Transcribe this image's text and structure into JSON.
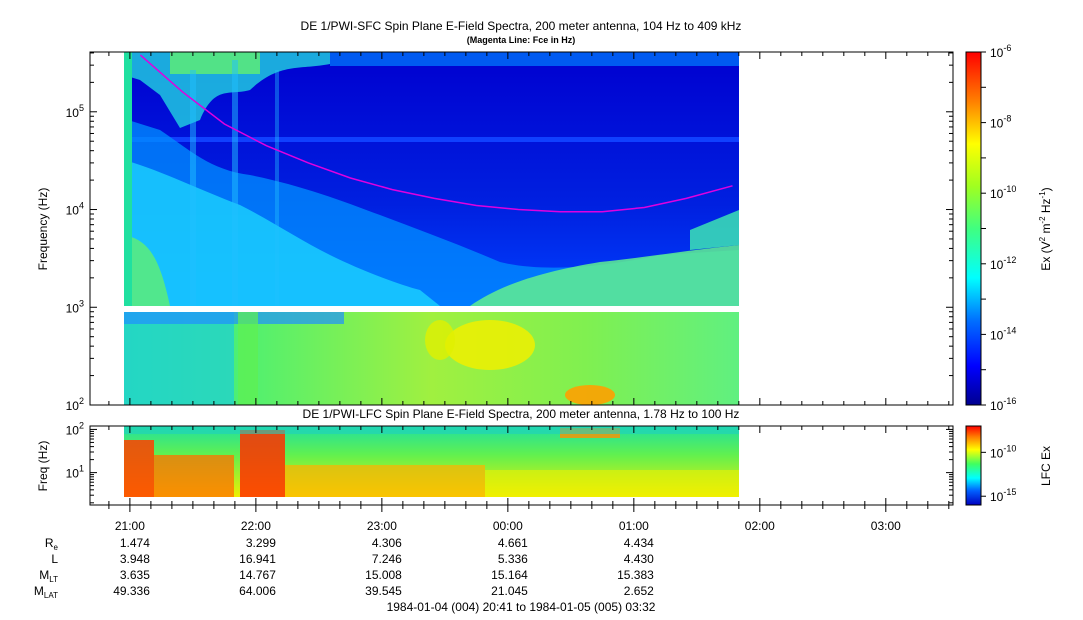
{
  "chart_data": [
    {
      "type": "heatmap",
      "title": "DE 1/PWI-SFC  Spin Plane E-Field Spectra, 200 meter antenna, 104 Hz to 409 kHz",
      "subtitle": "(Magenta Line: Fce in Hz)",
      "ylabel": "Frequency (Hz)",
      "yscale": "log",
      "ylim": [
        100,
        409000
      ],
      "yticks": [
        {
          "value": 100,
          "label": "10^2"
        },
        {
          "value": 1000,
          "label": "10^3"
        },
        {
          "value": 10000,
          "label": "10^4"
        },
        {
          "value": 100000,
          "label": "10^5"
        }
      ],
      "data_coverage_x": [
        "1984-01-04T20:56",
        "1984-01-05T01:49"
      ],
      "colorbar": {
        "label": "Ex (V^2 m^-2 Hz^-1)",
        "scale": "log",
        "range": [
          1e-16,
          1e-06
        ],
        "ticks": [
          {
            "value": 1e-06,
            "label": "10^-6"
          },
          {
            "value": 1e-08,
            "label": "10^-8"
          },
          {
            "value": 1e-10,
            "label": "10^-10"
          },
          {
            "value": 1e-12,
            "label": "10^-12"
          },
          {
            "value": 1e-14,
            "label": "10^-14"
          },
          {
            "value": 1e-16,
            "label": "10^-16"
          }
        ]
      },
      "fce_line": {
        "color": "#e000e0",
        "x": [
          "1984-01-04T21:05",
          "1984-01-04T21:25",
          "1984-01-04T21:45",
          "1984-01-04T22:05",
          "1984-01-04T22:25",
          "1984-01-04T22:45",
          "1984-01-04T23:05",
          "1984-01-04T23:25",
          "1984-01-04T23:45",
          "1984-01-05T00:05",
          "1984-01-05T00:25",
          "1984-01-05T00:45",
          "1984-01-05T01:05",
          "1984-01-05T01:25",
          "1984-01-05T01:47"
        ],
        "y": [
          380000,
          160000,
          75000,
          45000,
          30000,
          21000,
          16000,
          13000,
          11000,
          10000,
          9500,
          9500,
          10500,
          13000,
          17500
        ]
      }
    },
    {
      "type": "heatmap",
      "title": "DE 1/PWI-LFC  Spin Plane E-Field Spectra, 200 meter antenna, 1.78 Hz to 100 Hz",
      "ylabel": "Freq (Hz)",
      "yscale": "log",
      "ylim": [
        1.78,
        120
      ],
      "yticks": [
        {
          "value": 10,
          "label": "10^1"
        },
        {
          "value": 100,
          "label": "10^2"
        }
      ],
      "data_coverage_x": [
        "1984-01-04T20:56",
        "1984-01-05T01:49"
      ],
      "colorbar": {
        "label": "LFC Ex",
        "scale": "log",
        "range": [
          1e-16,
          1e-07
        ],
        "ticks": [
          {
            "value": 1e-10,
            "label": "10^-10"
          },
          {
            "value": 1e-15,
            "label": "10^-15"
          }
        ]
      }
    }
  ],
  "x_axis": {
    "start": "1984-01-04T20:41",
    "end": "1984-01-05T03:32",
    "ticks": [
      {
        "time": "1984-01-04T21:00",
        "label": "21:00"
      },
      {
        "time": "1984-01-04T22:00",
        "label": "22:00"
      },
      {
        "time": "1984-01-04T23:00",
        "label": "23:00"
      },
      {
        "time": "1984-01-05T00:00",
        "label": "00:00"
      },
      {
        "time": "1984-01-05T01:00",
        "label": "01:00"
      },
      {
        "time": "1984-01-05T02:00",
        "label": "02:00"
      },
      {
        "time": "1984-01-05T03:00",
        "label": "03:00"
      }
    ]
  },
  "ephemeris": {
    "rows": [
      {
        "label": "R",
        "sub": "e",
        "values": [
          "1.474",
          "3.299",
          "4.306",
          "4.661",
          "4.434"
        ]
      },
      {
        "label": "L",
        "sub": "",
        "values": [
          "3.948",
          "16.941",
          "7.246",
          "5.336",
          "4.430"
        ]
      },
      {
        "label": "M",
        "sub": "LT",
        "values": [
          "3.635",
          "14.767",
          "15.008",
          "15.164",
          "15.383"
        ]
      },
      {
        "label": "M",
        "sub": "LAT",
        "values": [
          "49.336",
          "64.006",
          "39.545",
          "21.045",
          "2.652"
        ]
      }
    ]
  },
  "footer": "1984-01-04 (004) 20:41 to 1984-01-05 (005) 03:32"
}
